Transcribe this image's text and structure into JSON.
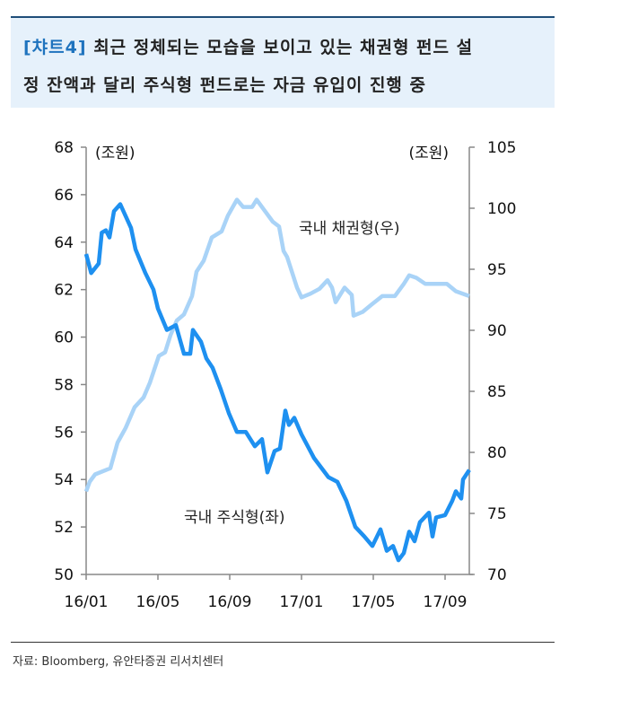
{
  "header": {
    "tag": "[챠트4]",
    "line1": "최근 정체되는 모습을 보이고 있는 채권형 펀드 설",
    "line2": "정 잔액과 달리 주식형 펀드로는 자금 유입이 진행 중"
  },
  "source": "자료: Bloomberg, 유안타증권 리서치센터",
  "chart_data": {
    "type": "line",
    "title": "최근 정체되는 모습을 보이고 있는 채권형 펀드 설정 잔액과 달리 주식형 펀드로는 자금 유입이 진행 중",
    "x_unit": "months since 16/01",
    "xticks": [
      {
        "m": 0,
        "label": "16/01"
      },
      {
        "m": 4,
        "label": "16/05"
      },
      {
        "m": 8,
        "label": "16/09"
      },
      {
        "m": 12,
        "label": "17/01"
      },
      {
        "m": 16,
        "label": "17/05"
      },
      {
        "m": 20,
        "label": "17/09"
      }
    ],
    "xlim": [
      0,
      21.35
    ],
    "y_left": {
      "label": "(조원)",
      "ylim": [
        50,
        68
      ],
      "ticks": [
        "50",
        "52",
        "54",
        "56",
        "58",
        "60",
        "62",
        "64",
        "66",
        "68"
      ]
    },
    "y_right": {
      "label": "(조원)",
      "ylim": [
        70,
        105
      ],
      "ticks": [
        "70",
        "75",
        "80",
        "85",
        "90",
        "95",
        "100",
        "105"
      ]
    },
    "colors": {
      "equity": "#1e90f0",
      "bond": "#a9d3f7"
    },
    "series": [
      {
        "name": "국내 주식형(좌)",
        "axis": "left",
        "x": [
          0,
          0.28,
          0.7,
          0.87,
          1.1,
          1.3,
          1.55,
          1.9,
          2.5,
          2.75,
          3.3,
          3.75,
          4.0,
          4.5,
          5.0,
          5.45,
          5.8,
          5.95,
          6.4,
          6.7,
          7.05,
          7.5,
          7.95,
          8.4,
          8.9,
          9.4,
          9.8,
          10.1,
          10.5,
          10.8,
          11.1,
          11.3,
          11.6,
          12.0,
          12.7,
          13.5,
          14.0,
          14.5,
          15.0,
          15.5,
          15.95,
          16.4,
          16.75,
          17.1,
          17.4,
          17.7,
          18.0,
          18.3,
          18.6,
          19.1,
          19.3,
          19.5,
          20.0,
          20.4,
          20.6,
          20.9,
          21.0,
          21.35
        ],
        "values": [
          63.5,
          62.7,
          63.1,
          64.4,
          64.5,
          64.2,
          65.3,
          65.6,
          64.6,
          63.7,
          62.7,
          62.0,
          61.2,
          60.3,
          60.5,
          59.3,
          59.3,
          60.3,
          59.8,
          59.1,
          58.7,
          57.8,
          56.8,
          56.0,
          56.0,
          55.4,
          55.7,
          54.3,
          55.2,
          55.3,
          56.9,
          56.3,
          56.6,
          55.9,
          54.9,
          54.1,
          53.9,
          53.1,
          52.0,
          51.6,
          51.2,
          51.9,
          51.0,
          51.2,
          50.6,
          50.9,
          51.8,
          51.4,
          52.2,
          52.6,
          51.6,
          52.4,
          52.5,
          53.1,
          53.5,
          53.2,
          54.0,
          54.4
        ]
      },
      {
        "name": "국내 채권형(우)",
        "axis": "right",
        "x": [
          0,
          0.2,
          0.5,
          1.35,
          1.75,
          2.2,
          2.7,
          3.2,
          3.55,
          4.05,
          4.4,
          4.7,
          5.05,
          5.45,
          5.9,
          6.15,
          6.55,
          7.0,
          7.55,
          7.9,
          8.4,
          8.75,
          9.25,
          9.5,
          9.9,
          10.4,
          10.75,
          11.0,
          11.2,
          11.75,
          12.0,
          12.5,
          13.0,
          13.45,
          13.7,
          13.9,
          14.4,
          14.8,
          14.9,
          15.4,
          15.9,
          16.5,
          17.2,
          17.7,
          18.0,
          18.4,
          18.9,
          19.4,
          20.1,
          20.6,
          21.35
        ],
        "values": [
          76.8,
          77.6,
          78.2,
          78.7,
          80.8,
          82.0,
          83.7,
          84.5,
          85.7,
          87.9,
          88.2,
          89.6,
          90.8,
          91.3,
          92.8,
          94.8,
          95.7,
          97.6,
          98.1,
          99.4,
          100.7,
          100.1,
          100.1,
          100.7,
          99.9,
          98.9,
          98.5,
          96.5,
          96.0,
          93.5,
          92.7,
          93.0,
          93.4,
          94.1,
          93.5,
          92.3,
          93.5,
          92.9,
          91.2,
          91.5,
          92.1,
          92.8,
          92.8,
          93.8,
          94.5,
          94.3,
          93.8,
          93.8,
          93.8,
          93.2,
          92.8
        ]
      }
    ]
  }
}
